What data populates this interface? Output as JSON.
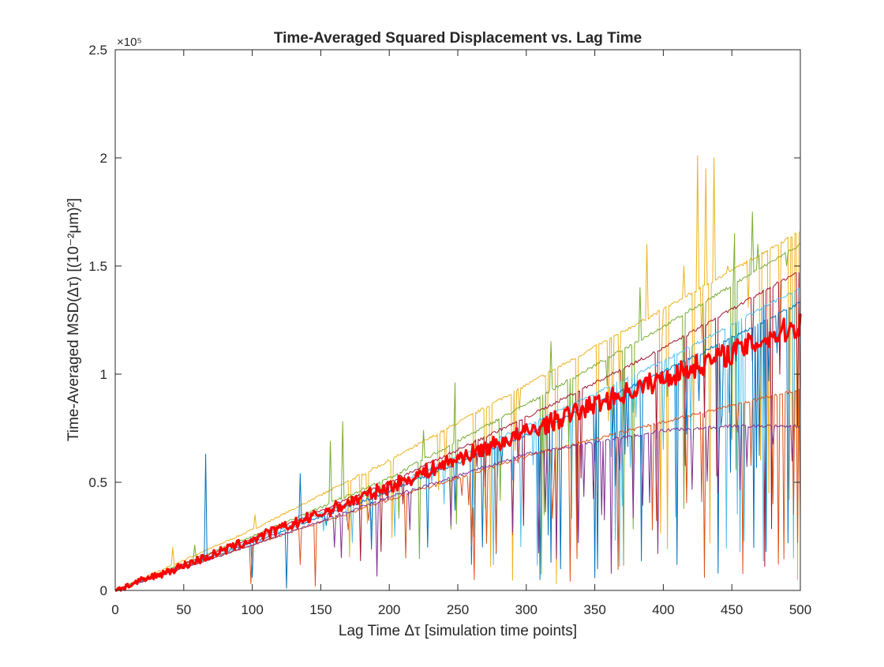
{
  "chart_data": {
    "type": "line",
    "title": "Time-Averaged Squared Displacement vs. Lag Time",
    "xlabel": "Lag Time Δτ [simulation time points]",
    "ylabel": "Time-Averaged MSD(Δτ) [(10⁻²μm)²]",
    "y_multiplier": "×10⁵",
    "xlim": [
      0,
      500
    ],
    "ylim": [
      0,
      250000
    ],
    "x_ticks": [
      0,
      50,
      100,
      150,
      200,
      250,
      300,
      350,
      400,
      450,
      500
    ],
    "x_tick_labels": [
      "0",
      "50",
      "100",
      "150",
      "200",
      "250",
      "300",
      "350",
      "400",
      "450",
      "500"
    ],
    "y_ticks": [
      0,
      50000,
      100000,
      150000,
      200000,
      250000
    ],
    "y_tick_labels": [
      "0",
      "0.5",
      "1",
      "1.5",
      "2",
      "2.5"
    ],
    "grid": false,
    "series": [
      {
        "color": "#EDB120",
        "x": [
          0,
          100,
          200,
          300,
          400,
          500
        ],
        "y": [
          0,
          28000,
          60000,
          95000,
          130000,
          166000
        ],
        "spikes": [
          [
            42,
            20000
          ],
          [
            102,
            35000
          ],
          [
            262,
            40000
          ],
          [
            322,
            3000
          ],
          [
            388,
            160000
          ],
          [
            415,
            150000
          ],
          [
            425,
            201000
          ],
          [
            431,
            195000
          ],
          [
            437,
            200000
          ],
          [
            443,
            145000
          ],
          [
            447,
            150000
          ],
          [
            485,
            115000
          ],
          [
            498,
            5000
          ]
        ]
      },
      {
        "color": "#77AC30",
        "x": [
          0,
          100,
          200,
          300,
          400,
          500
        ],
        "y": [
          0,
          25000,
          52000,
          86000,
          122000,
          160000
        ],
        "spikes": [
          [
            58,
            21000
          ],
          [
            157,
            69000
          ],
          [
            166,
            78000
          ],
          [
            225,
            74000
          ],
          [
            248,
            96000
          ],
          [
            318,
            115000
          ],
          [
            362,
            108000
          ],
          [
            383,
            140000
          ],
          [
            408,
            125000
          ],
          [
            452,
            165000
          ],
          [
            465,
            175000
          ],
          [
            469,
            160000
          ],
          [
            490,
            150000
          ]
        ]
      },
      {
        "color": "#A2142F",
        "x": [
          0,
          100,
          200,
          300,
          400,
          500
        ],
        "y": [
          0,
          24000,
          50000,
          80000,
          112000,
          148000
        ],
        "spikes": [
          [
            130,
            29000
          ],
          [
            210,
            40000
          ],
          [
            270,
            48000
          ],
          [
            298,
            30000
          ],
          [
            340,
            52000
          ],
          [
            395,
            70000
          ],
          [
            430,
            80000
          ],
          [
            485,
            100000
          ]
        ]
      },
      {
        "color": "#4DBEEE",
        "x": [
          0,
          100,
          200,
          300,
          400,
          500
        ],
        "y": [
          0,
          23000,
          48000,
          76000,
          106000,
          140000
        ],
        "spikes": [
          [
            120,
            25000
          ],
          [
            187,
            28000
          ],
          [
            240,
            40000
          ],
          [
            305,
            58000
          ],
          [
            350,
            60000
          ],
          [
            380,
            80000
          ],
          [
            420,
            70000
          ],
          [
            495,
            15000
          ]
        ]
      },
      {
        "color": "#0072BD",
        "x": [
          0,
          100,
          200,
          300,
          400,
          500
        ],
        "y": [
          0,
          22000,
          46000,
          72000,
          101000,
          133000
        ],
        "spikes": [
          [
            66,
            63000
          ],
          [
            100,
            6000
          ],
          [
            125,
            1000
          ],
          [
            135,
            54000
          ],
          [
            187,
            19000
          ],
          [
            228,
            20000
          ],
          [
            260,
            12000
          ],
          [
            278,
            17000
          ],
          [
            318,
            13000
          ],
          [
            325,
            10000
          ],
          [
            352,
            10000
          ],
          [
            410,
            12000
          ],
          [
            440,
            8000
          ],
          [
            475,
            18000
          ]
        ]
      },
      {
        "color": "#D95319",
        "x": [
          0,
          100,
          200,
          300,
          400,
          500
        ],
        "y": [
          0,
          21000,
          42000,
          62000,
          78000,
          93000
        ],
        "spikes": [
          [
            99,
            3000
          ],
          [
            135,
            12000
          ],
          [
            146,
            2000
          ],
          [
            170,
            28000
          ],
          [
            212,
            15000
          ],
          [
            262,
            5000
          ],
          [
            320,
            48000
          ],
          [
            392,
            28000
          ],
          [
            480,
            40000
          ]
        ]
      },
      {
        "color": "#7E2F8E",
        "x": [
          0,
          100,
          200,
          300,
          400,
          450,
          500
        ],
        "y": [
          0,
          21000,
          43000,
          63000,
          74000,
          76000,
          76000
        ],
        "spikes": [
          [
            160,
            20000
          ],
          [
            215,
            28000
          ],
          [
            245,
            30000
          ],
          [
            290,
            27000
          ],
          [
            355,
            35000
          ],
          [
            396,
            17000
          ],
          [
            440,
            45000
          ]
        ]
      },
      {
        "color": "#FF0000",
        "mean": true,
        "x": [
          0,
          50,
          100,
          150,
          200,
          250,
          300,
          350,
          400,
          450,
          500
        ],
        "y": [
          0,
          11500,
          23500,
          35500,
          48000,
          61000,
          73000,
          86000,
          98000,
          110000,
          123000
        ]
      }
    ]
  }
}
